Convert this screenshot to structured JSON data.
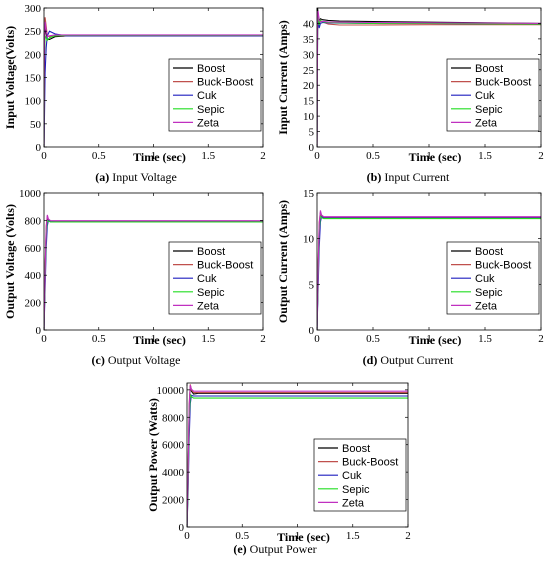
{
  "chart_data": [
    {
      "type": "line",
      "caption_tag": "(a)",
      "caption_text": " Input Voltage",
      "xlabel": "Time (sec)",
      "ylabel": "Input Voltage(Volts)",
      "xlim": [
        0,
        2
      ],
      "ylim": [
        0,
        300
      ],
      "xticks": [
        "0",
        "0.5",
        "1",
        "1.5",
        "2"
      ],
      "yticks": [
        "0",
        "50",
        "100",
        "150",
        "200",
        "250",
        "300"
      ],
      "legend_position": "bottom-right",
      "series": [
        {
          "name": "Boost",
          "x": [
            0,
            0.005,
            0.01,
            0.02,
            0.03,
            0.05,
            0.1,
            0.2,
            0.5,
            1,
            1.5,
            2
          ],
          "y": [
            0,
            220,
            265,
            245,
            232,
            232,
            238,
            240,
            240,
            240,
            240,
            240
          ]
        },
        {
          "name": "Buck-Boost",
          "x": [
            0,
            0.005,
            0.01,
            0.02,
            0.03,
            0.05,
            0.1,
            0.2,
            0.5,
            1,
            1.5,
            2
          ],
          "y": [
            0,
            250,
            280,
            260,
            240,
            238,
            240,
            241,
            241,
            241,
            241,
            241
          ]
        },
        {
          "name": "Cuk",
          "x": [
            0,
            0.005,
            0.01,
            0.02,
            0.03,
            0.05,
            0.1,
            0.2,
            0.5,
            1,
            1.5,
            2
          ],
          "y": [
            0,
            70,
            160,
            215,
            240,
            250,
            244,
            240,
            240,
            240,
            240,
            240
          ]
        },
        {
          "name": "Sepic",
          "x": [
            0,
            0.005,
            0.01,
            0.02,
            0.03,
            0.05,
            0.1,
            0.2,
            0.5,
            1,
            1.5,
            2
          ],
          "y": [
            0,
            200,
            240,
            235,
            230,
            236,
            240,
            241,
            241,
            241,
            241,
            241
          ]
        },
        {
          "name": "Zeta",
          "x": [
            0,
            0.005,
            0.01,
            0.02,
            0.03,
            0.05,
            0.1,
            0.2,
            0.5,
            1,
            1.5,
            2
          ],
          "y": [
            0,
            230,
            270,
            252,
            238,
            240,
            242,
            242,
            242,
            242,
            242,
            242
          ]
        }
      ]
    },
    {
      "type": "line",
      "caption_tag": "(b)",
      "caption_text": " Input Current",
      "xlabel": "Time (sec)",
      "ylabel": "Input Current (Amps)",
      "xlim": [
        0,
        2
      ],
      "ylim": [
        0,
        45
      ],
      "xticks": [
        "0",
        "0.5",
        "1",
        "1.5",
        "2"
      ],
      "yticks": [
        "0",
        "5",
        "10",
        "15",
        "20",
        "25",
        "30",
        "35",
        "40"
      ],
      "legend_position": "bottom-right",
      "series": [
        {
          "name": "Boost",
          "x": [
            0,
            0.005,
            0.01,
            0.02,
            0.03,
            0.05,
            0.1,
            0.2,
            0.5,
            1,
            1.5,
            2
          ],
          "y": [
            0,
            45,
            43,
            41,
            41.5,
            41.2,
            41,
            40.8,
            40.6,
            40.4,
            40.2,
            40
          ]
        },
        {
          "name": "Buck-Boost",
          "x": [
            0,
            0.005,
            0.01,
            0.02,
            0.03,
            0.05,
            0.1,
            0.2,
            0.5,
            1,
            1.5,
            2
          ],
          "y": [
            0,
            43,
            39,
            40.5,
            41,
            40.5,
            39.8,
            39.5,
            39.5,
            39.6,
            39.6,
            39.6
          ]
        },
        {
          "name": "Cuk",
          "x": [
            0,
            0.005,
            0.01,
            0.02,
            0.03,
            0.05,
            0.1,
            0.2,
            0.5,
            1,
            1.5,
            2
          ],
          "y": [
            0,
            38,
            41,
            38.5,
            40,
            40.3,
            40.2,
            40.1,
            40,
            40,
            39.9,
            39.8
          ]
        },
        {
          "name": "Sepic",
          "x": [
            0,
            0.005,
            0.01,
            0.02,
            0.03,
            0.05,
            0.1,
            0.2,
            0.5,
            1,
            1.5,
            2
          ],
          "y": [
            0,
            40,
            43,
            39.5,
            41,
            40.5,
            40.3,
            40.2,
            40,
            40,
            39.9,
            39.8
          ]
        },
        {
          "name": "Zeta",
          "x": [
            0,
            0.005,
            0.01,
            0.02,
            0.03,
            0.05,
            0.1,
            0.2,
            0.5,
            1,
            1.5,
            2
          ],
          "y": [
            0,
            42,
            44,
            41,
            40.5,
            40.7,
            40.5,
            40.4,
            40.3,
            40.2,
            40.1,
            40
          ]
        }
      ]
    },
    {
      "type": "line",
      "caption_tag": "(c)",
      "caption_text": " Output Voltage",
      "xlabel": "Time (sec)",
      "ylabel": "Output Voltage (Volts)",
      "xlim": [
        0,
        2
      ],
      "ylim": [
        0,
        1000
      ],
      "xticks": [
        "0",
        "0.5",
        "1",
        "1.5",
        "2"
      ],
      "yticks": [
        "0",
        "200",
        "400",
        "600",
        "800",
        "1000"
      ],
      "legend_position": "bottom-right",
      "series": [
        {
          "name": "Boost",
          "x": [
            0,
            0.01,
            0.02,
            0.03,
            0.04,
            0.06,
            0.1,
            0.2,
            0.5,
            1,
            1.5,
            2
          ],
          "y": [
            0,
            400,
            720,
            820,
            800,
            790,
            792,
            792,
            792,
            792,
            792,
            792
          ]
        },
        {
          "name": "Buck-Boost",
          "x": [
            0,
            0.01,
            0.02,
            0.03,
            0.04,
            0.06,
            0.1,
            0.2,
            0.5,
            1,
            1.5,
            2
          ],
          "y": [
            0,
            450,
            760,
            830,
            805,
            795,
            795,
            795,
            795,
            795,
            795,
            795
          ]
        },
        {
          "name": "Cuk",
          "x": [
            0,
            0.01,
            0.02,
            0.03,
            0.04,
            0.06,
            0.1,
            0.2,
            0.5,
            1,
            1.5,
            2
          ],
          "y": [
            0,
            300,
            600,
            760,
            800,
            792,
            790,
            790,
            790,
            790,
            790,
            790
          ]
        },
        {
          "name": "Sepic",
          "x": [
            0,
            0.01,
            0.02,
            0.03,
            0.04,
            0.06,
            0.1,
            0.2,
            0.5,
            1,
            1.5,
            2
          ],
          "y": [
            0,
            380,
            700,
            800,
            795,
            788,
            788,
            788,
            788,
            788,
            788,
            788
          ]
        },
        {
          "name": "Zeta",
          "x": [
            0,
            0.01,
            0.02,
            0.03,
            0.04,
            0.06,
            0.1,
            0.2,
            0.5,
            1,
            1.5,
            2
          ],
          "y": [
            0,
            420,
            740,
            840,
            810,
            798,
            798,
            798,
            798,
            798,
            798,
            798
          ]
        }
      ]
    },
    {
      "type": "line",
      "caption_tag": "(d)",
      "caption_text": " Output Current",
      "xlabel": "Time (sec)",
      "ylabel": "Output Current (Amps)",
      "xlim": [
        0,
        2
      ],
      "ylim": [
        0,
        15
      ],
      "xticks": [
        "0",
        "0.5",
        "1",
        "1.5",
        "2"
      ],
      "yticks": [
        "0",
        "5",
        "10",
        "15"
      ],
      "legend_position": "bottom-right",
      "series": [
        {
          "name": "Boost",
          "x": [
            0,
            0.01,
            0.02,
            0.03,
            0.04,
            0.06,
            0.1,
            0.2,
            0.5,
            1,
            1.5,
            2
          ],
          "y": [
            0,
            6,
            11,
            12.8,
            12.4,
            12.3,
            12.3,
            12.3,
            12.3,
            12.3,
            12.3,
            12.3
          ]
        },
        {
          "name": "Buck-Boost",
          "x": [
            0,
            0.01,
            0.02,
            0.03,
            0.04,
            0.06,
            0.1,
            0.2,
            0.5,
            1,
            1.5,
            2
          ],
          "y": [
            0,
            7,
            11.8,
            12.9,
            12.5,
            12.35,
            12.35,
            12.35,
            12.35,
            12.35,
            12.35,
            12.35
          ]
        },
        {
          "name": "Cuk",
          "x": [
            0,
            0.01,
            0.02,
            0.03,
            0.04,
            0.06,
            0.1,
            0.2,
            0.5,
            1,
            1.5,
            2
          ],
          "y": [
            0,
            4.5,
            9,
            11.8,
            12.4,
            12.25,
            12.25,
            12.25,
            12.25,
            12.25,
            12.25,
            12.25
          ]
        },
        {
          "name": "Sepic",
          "x": [
            0,
            0.01,
            0.02,
            0.03,
            0.04,
            0.06,
            0.1,
            0.2,
            0.5,
            1,
            1.5,
            2
          ],
          "y": [
            0,
            5.8,
            10.8,
            12.5,
            12.3,
            12.2,
            12.2,
            12.2,
            12.2,
            12.2,
            12.2,
            12.2
          ]
        },
        {
          "name": "Zeta",
          "x": [
            0,
            0.01,
            0.02,
            0.03,
            0.04,
            0.06,
            0.1,
            0.2,
            0.5,
            1,
            1.5,
            2
          ],
          "y": [
            0,
            6.5,
            11.5,
            13.1,
            12.6,
            12.4,
            12.4,
            12.4,
            12.4,
            12.4,
            12.4,
            12.4
          ]
        }
      ]
    },
    {
      "type": "line",
      "caption_tag": "(e)",
      "caption_text": " Output Power",
      "xlabel": "Time (sec)",
      "ylabel": "Output Power (Watts)",
      "xlim": [
        0,
        2
      ],
      "ylim": [
        0,
        10500
      ],
      "xticks": [
        "0",
        "0.5",
        "1",
        "1.5",
        "2"
      ],
      "yticks": [
        "0",
        "2000",
        "4000",
        "6000",
        "8000",
        "10000"
      ],
      "legend_position": "bottom-right",
      "series": [
        {
          "name": "Boost",
          "x": [
            0,
            0.01,
            0.02,
            0.03,
            0.04,
            0.06,
            0.1,
            0.2,
            0.5,
            1,
            1.5,
            2
          ],
          "y": [
            0,
            3500,
            8500,
            10300,
            9900,
            9700,
            9750,
            9750,
            9750,
            9750,
            9750,
            9750
          ]
        },
        {
          "name": "Buck-Boost",
          "x": [
            0,
            0.01,
            0.02,
            0.03,
            0.04,
            0.06,
            0.1,
            0.2,
            0.5,
            1,
            1.5,
            2
          ],
          "y": [
            0,
            4000,
            9000,
            10400,
            10000,
            9800,
            9800,
            9800,
            9800,
            9800,
            9800,
            9800
          ]
        },
        {
          "name": "Cuk",
          "x": [
            0,
            0.01,
            0.02,
            0.03,
            0.04,
            0.06,
            0.1,
            0.2,
            0.5,
            1,
            1.5,
            2
          ],
          "y": [
            0,
            2500,
            6500,
            9000,
            9600,
            9550,
            9550,
            9550,
            9550,
            9550,
            9550,
            9550
          ]
        },
        {
          "name": "Sepic",
          "x": [
            0,
            0.01,
            0.02,
            0.03,
            0.04,
            0.06,
            0.1,
            0.2,
            0.5,
            1,
            1.5,
            2
          ],
          "y": [
            0,
            3000,
            7800,
            9700,
            9500,
            9400,
            9400,
            9400,
            9400,
            9400,
            9400,
            9400
          ]
        },
        {
          "name": "Zeta",
          "x": [
            0,
            0.01,
            0.02,
            0.03,
            0.04,
            0.06,
            0.1,
            0.2,
            0.5,
            1,
            1.5,
            2
          ],
          "y": [
            0,
            3800,
            8800,
            10350,
            10050,
            9900,
            9900,
            9900,
            9900,
            9900,
            9900,
            9900
          ]
        }
      ]
    }
  ],
  "colors": {
    "Boost": "#000000",
    "Buck-Boost": "#c0504d",
    "Cuk": "#1f1fbf",
    "Sepic": "#22dd22",
    "Zeta": "#c030c0"
  }
}
